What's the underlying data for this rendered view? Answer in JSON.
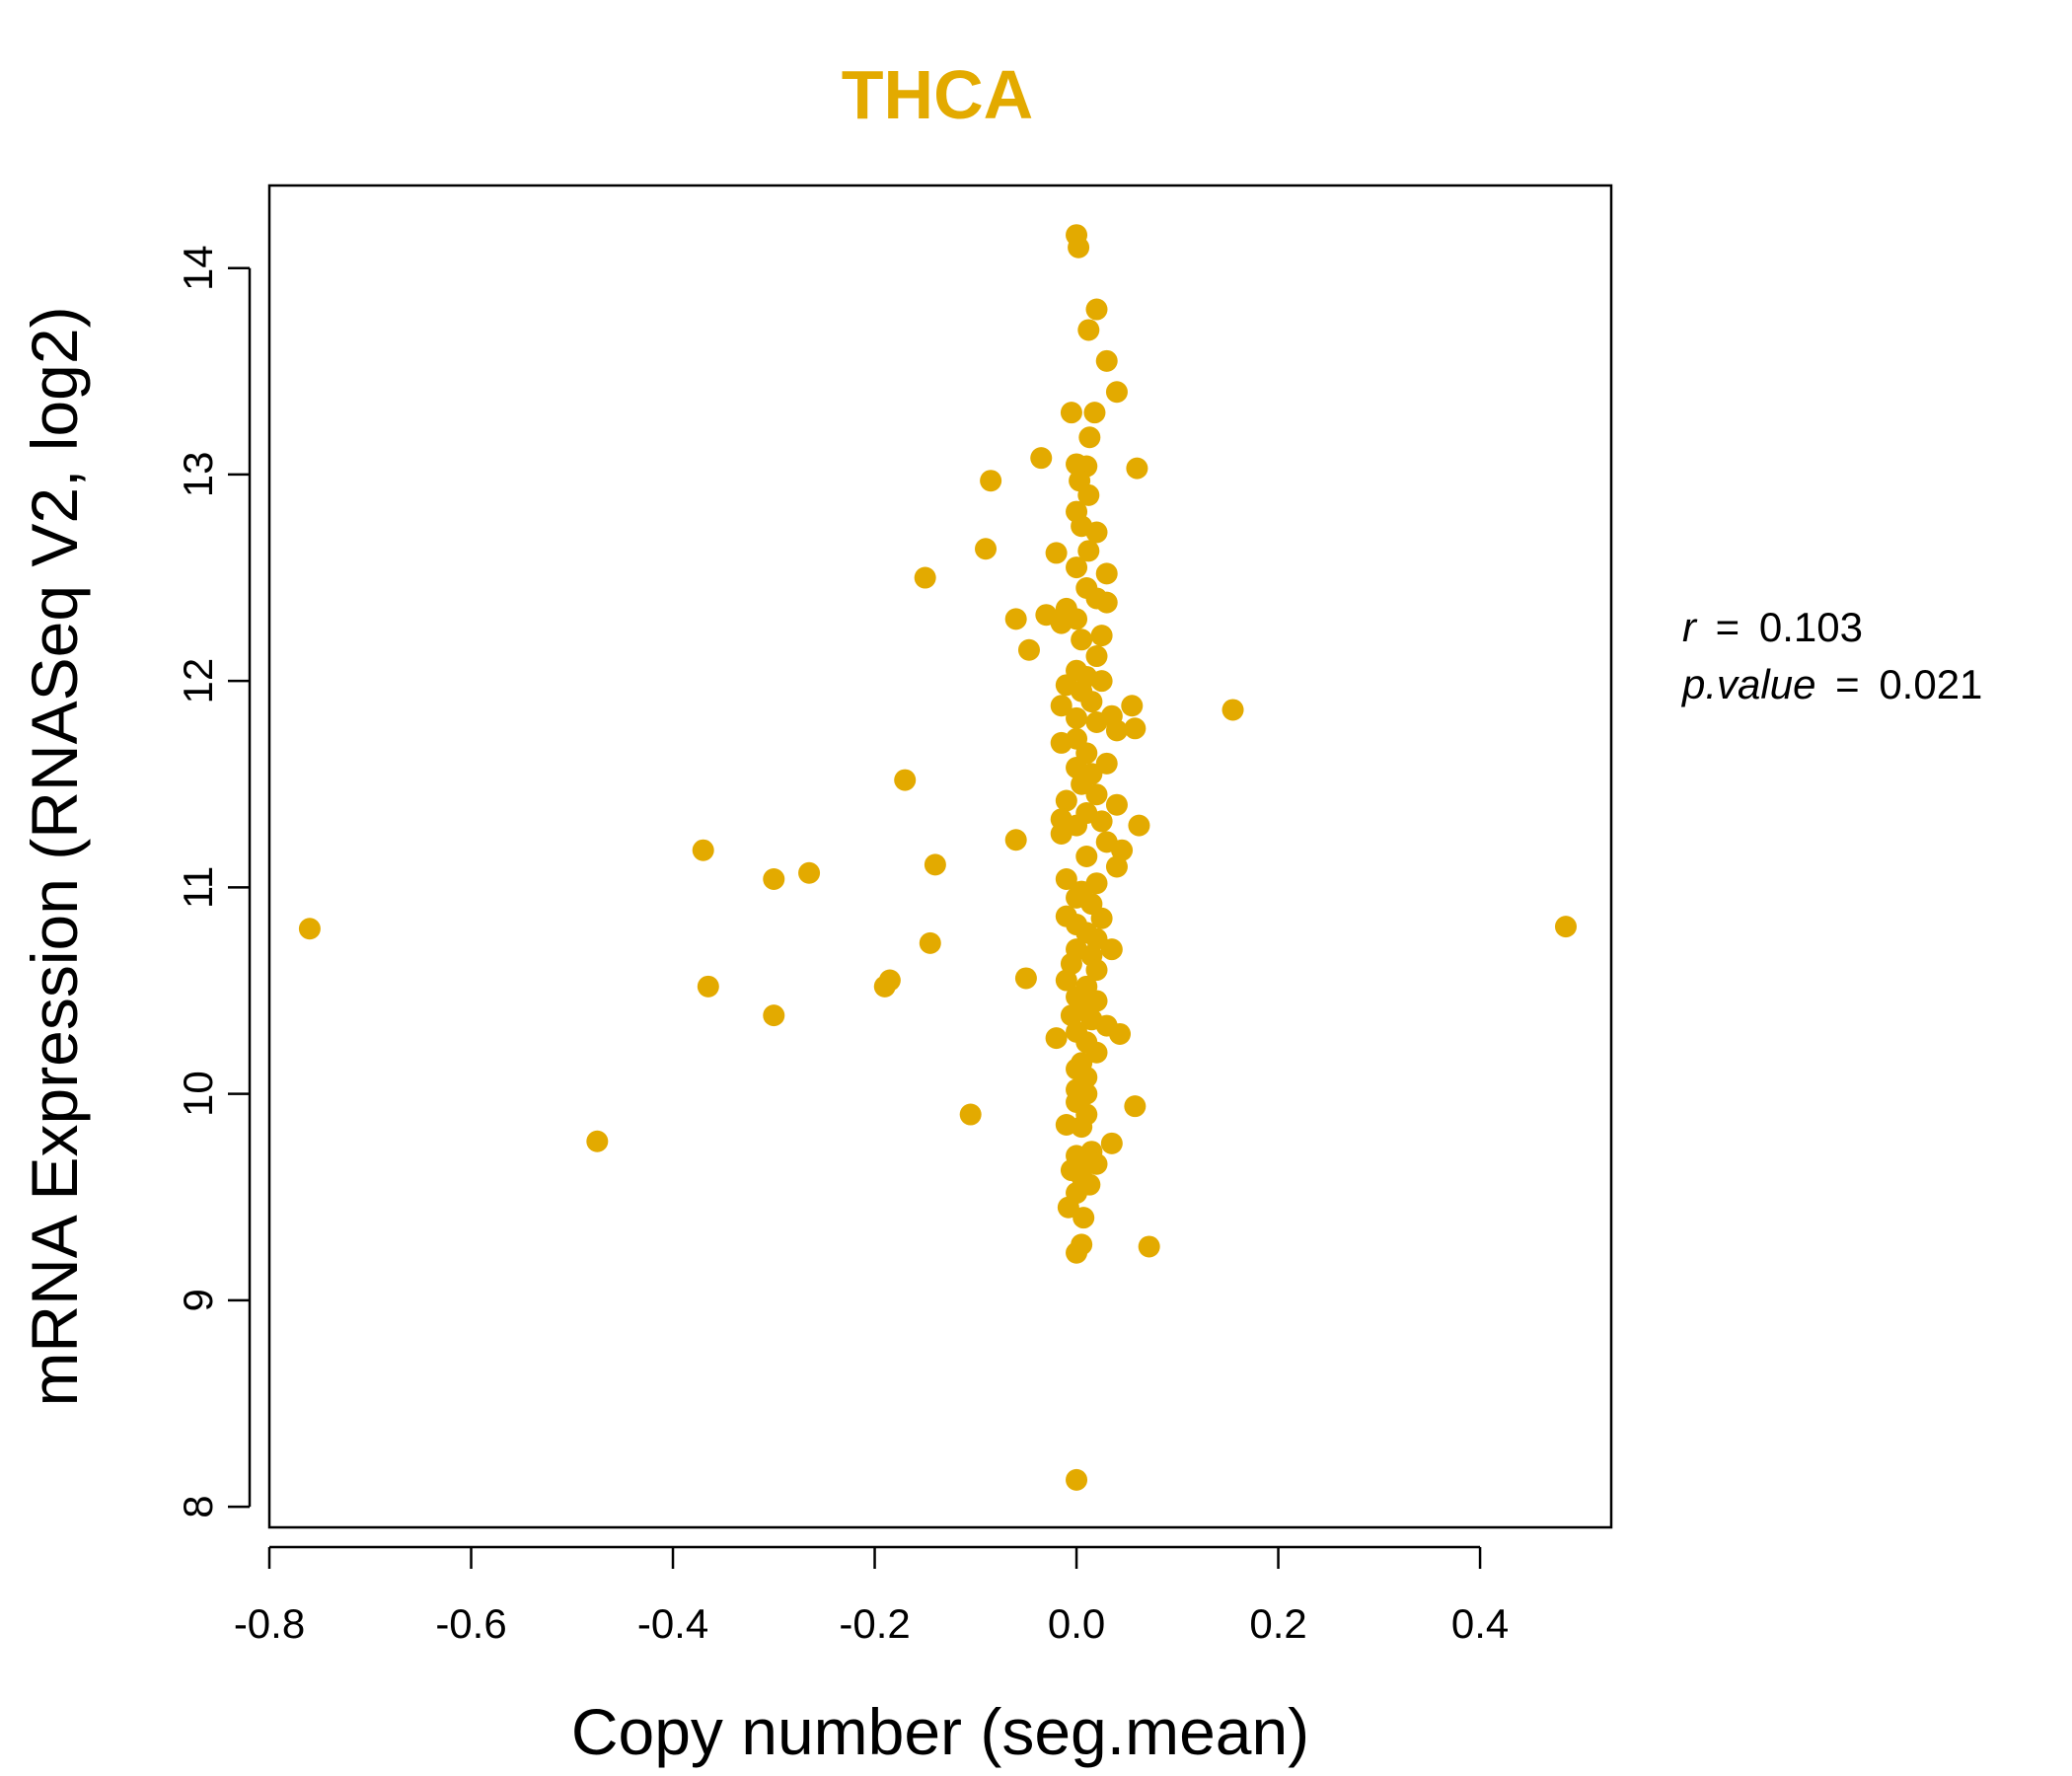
{
  "chart_data": {
    "type": "scatter",
    "title": "THCA",
    "xlabel": "Copy number (seg.mean)",
    "ylabel": "mRNA Expression (RNASeq V2, log2)",
    "xlim": [
      -0.8,
      0.53
    ],
    "ylim": [
      7.9,
      14.4
    ],
    "x_ticks": [
      -0.8,
      -0.6,
      -0.4,
      -0.2,
      0.0,
      0.2,
      0.4
    ],
    "x_tick_labels": [
      "-0.8",
      "-0.6",
      "-0.4",
      "-0.2",
      "0.0",
      "0.2",
      "0.4"
    ],
    "y_ticks": [
      8,
      9,
      10,
      11,
      12,
      13,
      14
    ],
    "y_tick_labels": [
      "8",
      "9",
      "10",
      "11",
      "12",
      "13",
      "14"
    ],
    "point_color": "#E3AA00",
    "title_color": "#E3AA00",
    "stats": {
      "r_label": "r",
      "r_value": "0.103",
      "p_label": "p.value",
      "p_value": "0.021",
      "eq": "="
    },
    "points": [
      [
        0.0,
        14.16
      ],
      [
        0.002,
        14.1
      ],
      [
        0.02,
        13.8
      ],
      [
        0.012,
        13.7
      ],
      [
        0.03,
        13.55
      ],
      [
        0.04,
        13.4
      ],
      [
        -0.005,
        13.3
      ],
      [
        0.018,
        13.3
      ],
      [
        0.013,
        13.18
      ],
      [
        -0.035,
        13.08
      ],
      [
        0.06,
        13.03
      ],
      [
        0.0,
        13.05
      ],
      [
        0.01,
        13.04
      ],
      [
        -0.085,
        12.97
      ],
      [
        0.003,
        12.97
      ],
      [
        0.012,
        12.9
      ],
      [
        0.0,
        12.82
      ],
      [
        0.005,
        12.75
      ],
      [
        0.02,
        12.72
      ],
      [
        -0.09,
        12.64
      ],
      [
        -0.02,
        12.62
      ],
      [
        0.012,
        12.63
      ],
      [
        0.0,
        12.55
      ],
      [
        0.03,
        12.52
      ],
      [
        -0.15,
        12.5
      ],
      [
        0.01,
        12.45
      ],
      [
        0.02,
        12.4
      ],
      [
        0.03,
        12.38
      ],
      [
        -0.01,
        12.35
      ],
      [
        0.0,
        12.3
      ],
      [
        -0.03,
        12.32
      ],
      [
        -0.06,
        12.3
      ],
      [
        -0.015,
        12.28
      ],
      [
        0.025,
        12.22
      ],
      [
        0.005,
        12.2
      ],
      [
        -0.047,
        12.15
      ],
      [
        0.02,
        12.12
      ],
      [
        0.0,
        12.05
      ],
      [
        0.01,
        12.02
      ],
      [
        0.025,
        12.0
      ],
      [
        -0.01,
        11.98
      ],
      [
        0.005,
        11.95
      ],
      [
        0.015,
        11.9
      ],
      [
        0.055,
        11.88
      ],
      [
        0.155,
        11.86
      ],
      [
        -0.015,
        11.88
      ],
      [
        0.035,
        11.83
      ],
      [
        0.0,
        11.82
      ],
      [
        0.02,
        11.8
      ],
      [
        0.058,
        11.77
      ],
      [
        0.04,
        11.76
      ],
      [
        0.0,
        11.72
      ],
      [
        -0.015,
        11.7
      ],
      [
        0.01,
        11.65
      ],
      [
        0.03,
        11.6
      ],
      [
        0.0,
        11.58
      ],
      [
        0.015,
        11.55
      ],
      [
        -0.17,
        11.52
      ],
      [
        0.005,
        11.5
      ],
      [
        0.02,
        11.45
      ],
      [
        -0.01,
        11.42
      ],
      [
        0.04,
        11.4
      ],
      [
        0.01,
        11.36
      ],
      [
        -0.015,
        11.33
      ],
      [
        0.025,
        11.32
      ],
      [
        0.0,
        11.3
      ],
      [
        0.062,
        11.3
      ],
      [
        -0.015,
        11.26
      ],
      [
        -0.06,
        11.23
      ],
      [
        0.03,
        11.22
      ],
      [
        -0.37,
        11.18
      ],
      [
        0.045,
        11.18
      ],
      [
        0.01,
        11.15
      ],
      [
        -0.14,
        11.11
      ],
      [
        0.04,
        11.1
      ],
      [
        -0.265,
        11.07
      ],
      [
        -0.3,
        11.04
      ],
      [
        -0.01,
        11.04
      ],
      [
        0.02,
        11.02
      ],
      [
        0.005,
        10.98
      ],
      [
        0.0,
        10.95
      ],
      [
        0.015,
        10.92
      ],
      [
        -0.01,
        10.86
      ],
      [
        0.025,
        10.85
      ],
      [
        0.0,
        10.82
      ],
      [
        -0.76,
        10.8
      ],
      [
        0.485,
        10.81
      ],
      [
        0.01,
        10.78
      ],
      [
        0.02,
        10.75
      ],
      [
        -0.145,
        10.73
      ],
      [
        0.035,
        10.7
      ],
      [
        0.0,
        10.7
      ],
      [
        0.015,
        10.67
      ],
      [
        -0.005,
        10.63
      ],
      [
        0.02,
        10.6
      ],
      [
        -0.05,
        10.56
      ],
      [
        -0.185,
        10.55
      ],
      [
        -0.01,
        10.55
      ],
      [
        -0.19,
        10.52
      ],
      [
        -0.365,
        10.52
      ],
      [
        0.01,
        10.52
      ],
      [
        0.0,
        10.47
      ],
      [
        0.02,
        10.45
      ],
      [
        0.005,
        10.42
      ],
      [
        -0.005,
        10.38
      ],
      [
        -0.3,
        10.38
      ],
      [
        0.015,
        10.36
      ],
      [
        0.03,
        10.33
      ],
      [
        0.0,
        10.3
      ],
      [
        0.043,
        10.29
      ],
      [
        -0.02,
        10.27
      ],
      [
        0.01,
        10.25
      ],
      [
        0.02,
        10.2
      ],
      [
        0.005,
        10.15
      ],
      [
        0.0,
        10.12
      ],
      [
        0.01,
        10.08
      ],
      [
        0.0,
        10.02
      ],
      [
        0.01,
        10.0
      ],
      [
        -0.105,
        9.9
      ],
      [
        0.058,
        9.94
      ],
      [
        0.0,
        9.96
      ],
      [
        0.01,
        9.9
      ],
      [
        -0.01,
        9.85
      ],
      [
        0.005,
        9.84
      ],
      [
        -0.475,
        9.77
      ],
      [
        0.035,
        9.76
      ],
      [
        0.015,
        9.72
      ],
      [
        0.0,
        9.7
      ],
      [
        0.01,
        9.68
      ],
      [
        0.02,
        9.66
      ],
      [
        -0.005,
        9.63
      ],
      [
        0.005,
        9.6
      ],
      [
        0.013,
        9.56
      ],
      [
        0.0,
        9.52
      ],
      [
        -0.008,
        9.45
      ],
      [
        0.007,
        9.4
      ],
      [
        0.072,
        9.26
      ],
      [
        0.005,
        9.27
      ],
      [
        0.0,
        9.23
      ],
      [
        0.0,
        8.13
      ]
    ]
  }
}
